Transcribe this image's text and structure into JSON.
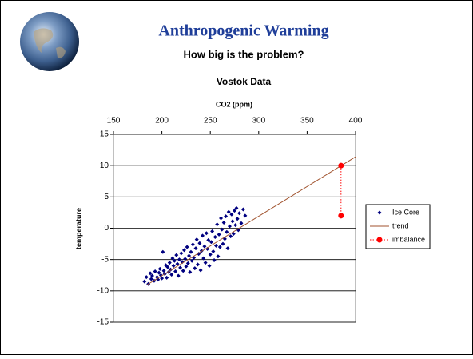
{
  "header": {
    "title": "Anthropogenic Warming",
    "subtitle": "How big is the problem?"
  },
  "chart_data": {
    "type": "scatter",
    "title": "Vostok Data",
    "xlabel": "CO2 (ppm)",
    "ylabel": "temperature",
    "xlim": [
      150,
      400
    ],
    "xticks": [
      150,
      200,
      250,
      300,
      350,
      400
    ],
    "ylim": [
      -15,
      15
    ],
    "yticks": [
      -15,
      -10,
      -5,
      0,
      5,
      10,
      15
    ],
    "grid": true,
    "x_axis_position": "top",
    "legend": "right",
    "series": [
      {
        "name": "Ice Core",
        "color": "#000080",
        "marker": "diamond",
        "line": null,
        "x": [
          182,
          184,
          186,
          188,
          189,
          190,
          192,
          193,
          195,
          196,
          197,
          198,
          199,
          200,
          201,
          202,
          203,
          204,
          205,
          206,
          207,
          208,
          209,
          210,
          211,
          212,
          213,
          214,
          215,
          216,
          217,
          218,
          219,
          220,
          221,
          222,
          223,
          224,
          225,
          226,
          227,
          228,
          229,
          230,
          231,
          232,
          233,
          234,
          235,
          236,
          237,
          238,
          239,
          240,
          241,
          242,
          243,
          244,
          245,
          246,
          247,
          248,
          249,
          250,
          251,
          252,
          253,
          254,
          255,
          256,
          257,
          258,
          259,
          260,
          261,
          262,
          263,
          264,
          265,
          266,
          267,
          268,
          269,
          270,
          271,
          272,
          273,
          274,
          275,
          276,
          277,
          278,
          279,
          280,
          282,
          284,
          286
        ],
        "values": [
          -8.5,
          -7.8,
          -8.9,
          -7.2,
          -8.1,
          -7.6,
          -8.4,
          -6.9,
          -7.8,
          -8.2,
          -7.1,
          -6.5,
          -7.5,
          -8.0,
          -3.8,
          -6.8,
          -7.3,
          -5.9,
          -7.9,
          -6.2,
          -7.0,
          -5.5,
          -6.6,
          -7.4,
          -4.8,
          -6.0,
          -5.2,
          -6.9,
          -4.3,
          -5.7,
          -7.6,
          -5.0,
          -6.3,
          -4.0,
          -5.4,
          -6.8,
          -3.5,
          -4.9,
          -6.1,
          -3.0,
          -5.6,
          -4.4,
          -7.0,
          -3.8,
          -5.2,
          -2.6,
          -4.7,
          -6.4,
          -3.2,
          -1.8,
          -5.8,
          -4.1,
          -2.4,
          -6.7,
          -3.6,
          -1.2,
          -4.8,
          -2.9,
          -5.5,
          -0.8,
          -3.3,
          -1.9,
          -6.0,
          -4.2,
          -2.2,
          -0.5,
          -3.7,
          -5.1,
          -1.4,
          -2.8,
          0.6,
          -4.5,
          -1.0,
          -3.0,
          1.6,
          -0.2,
          -2.5,
          0.9,
          -1.7,
          1.9,
          -0.6,
          -3.2,
          2.6,
          0.3,
          -1.3,
          2.2,
          1.1,
          -0.9,
          2.8,
          0.5,
          3.2,
          1.5,
          -0.3,
          2.4,
          0.8,
          3.0,
          2.0
        ]
      },
      {
        "name": "trend",
        "color": "#a0522d",
        "marker": null,
        "line": "solid",
        "x": [
          185,
          400
        ],
        "values": [
          -9,
          11.4
        ]
      },
      {
        "name": "imbalance",
        "color": "#ff0000",
        "marker": "circle",
        "line": "dotted",
        "x": [
          385,
          385
        ],
        "values": [
          10,
          2
        ]
      }
    ]
  }
}
